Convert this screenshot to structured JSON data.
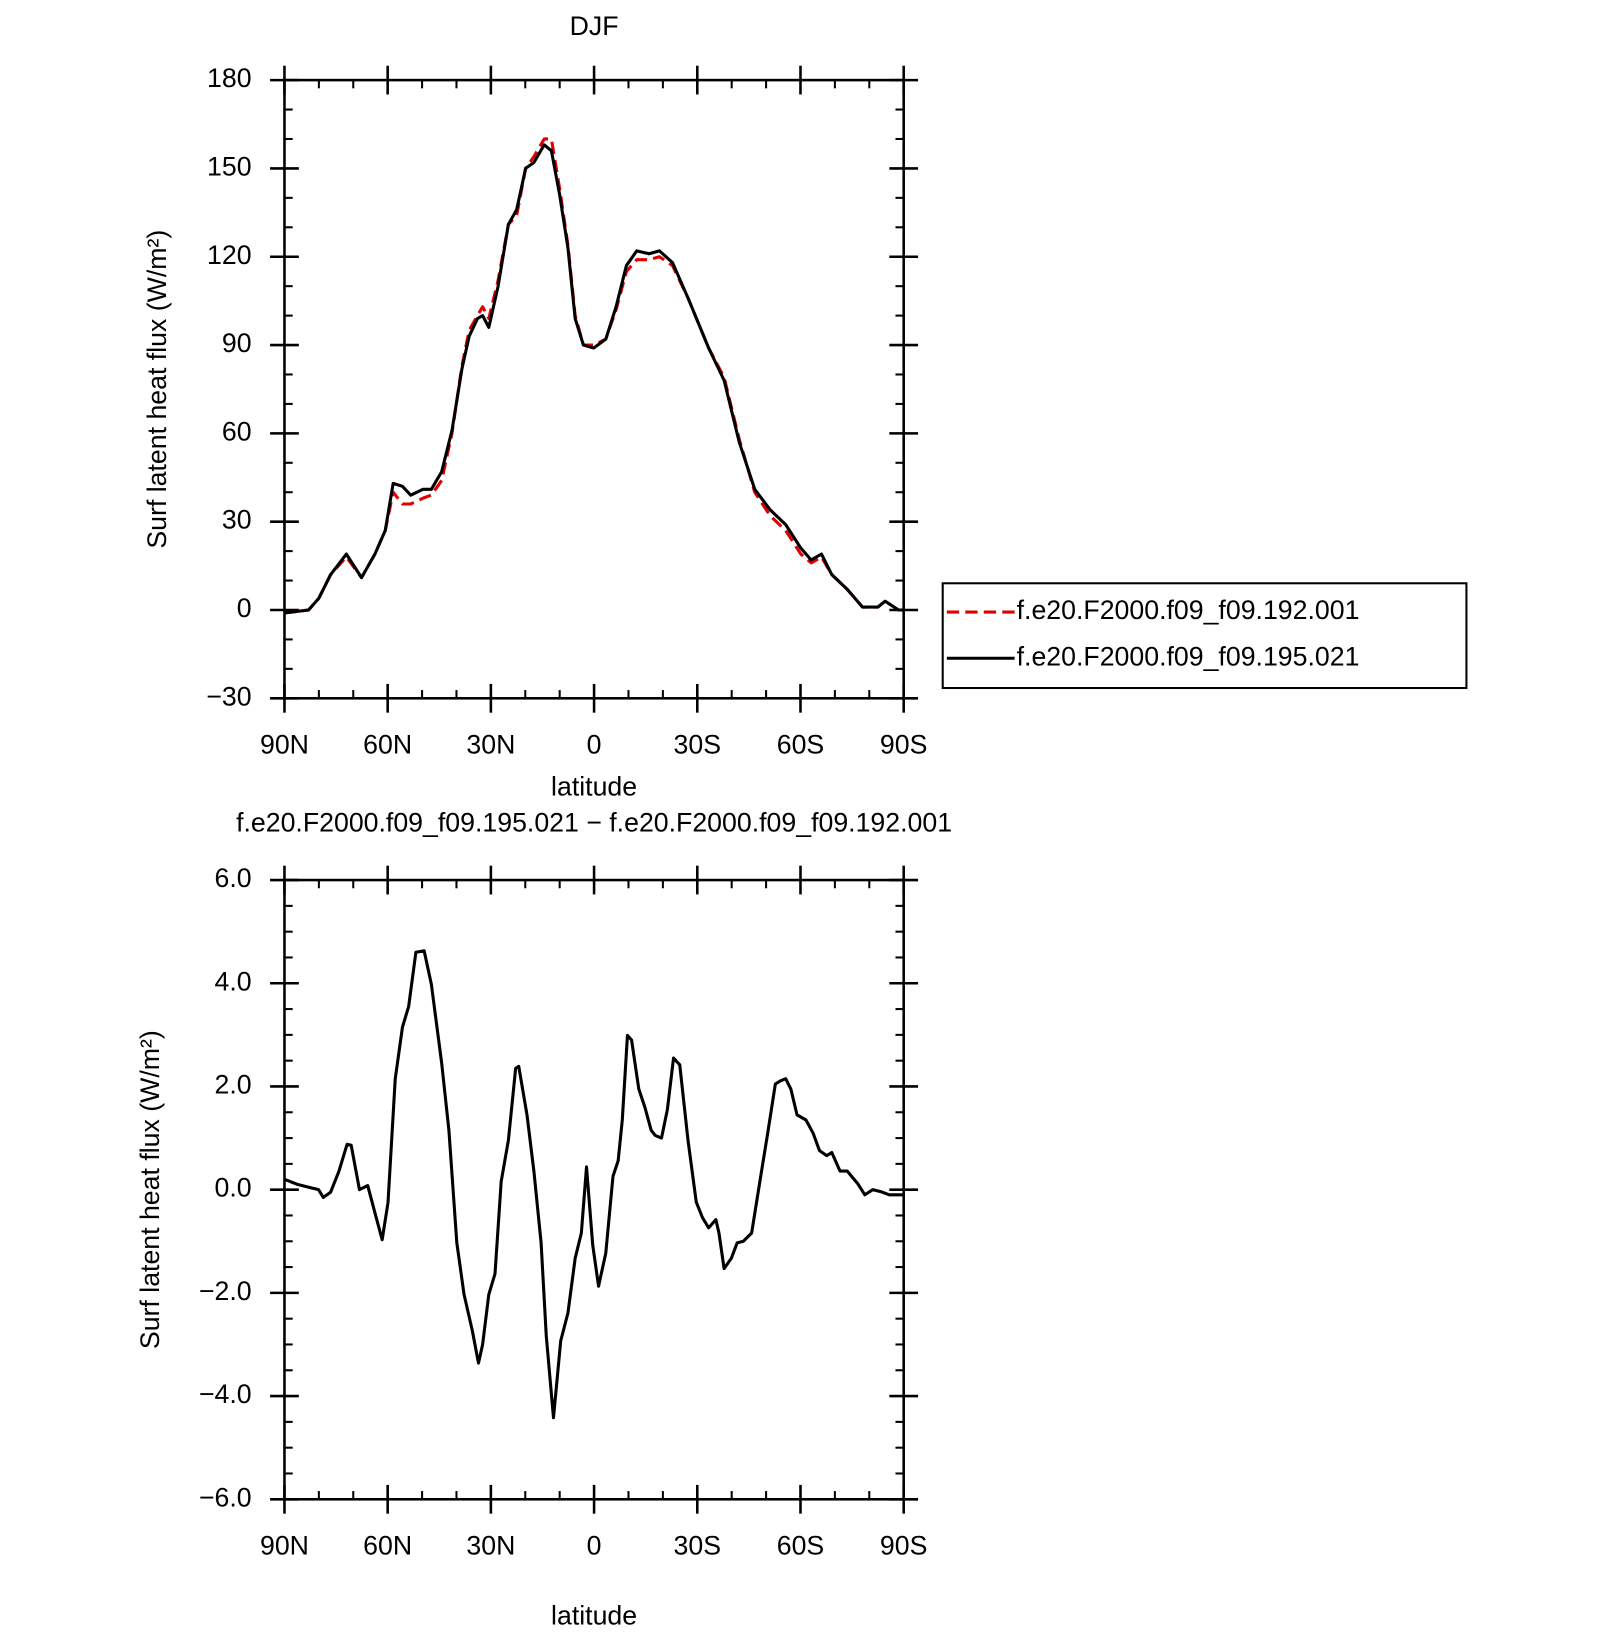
{
  "chart_data": [
    {
      "type": "line",
      "title": "DJF",
      "xlabel": "latitude",
      "ylabel": "Surf latent heat flux (W/m²)",
      "x": [
        90,
        83,
        80,
        76.6,
        72,
        67.6,
        63.7,
        60.7,
        58.4,
        55.7,
        53.3,
        49.7,
        47.3,
        44.3,
        41.3,
        38.4,
        36.3,
        33.9,
        32.4,
        30.6,
        27.9,
        24.9,
        22.5,
        19.9,
        17.5,
        14.5,
        12.4,
        10,
        7.6,
        5.5,
        3.1,
        0.1,
        -3.4,
        -6.4,
        -9.4,
        -12.4,
        -16,
        -19,
        -22.8,
        -27.3,
        -33.3,
        -37.8,
        -42.2,
        -46.7,
        -51.2,
        -55.7,
        -60.1,
        -63.1,
        -66.1,
        -69.1,
        -73.6,
        -78,
        -82.5,
        -84.6,
        -88.5,
        -90
      ],
      "series": [
        {
          "name": "f.e20.F2000.f09_f09.192.001",
          "color": "#e00000",
          "linestyle": "dashed",
          "values": [
            -1,
            0,
            4,
            12,
            18,
            11,
            19,
            27,
            40,
            36,
            36,
            38,
            39,
            44,
            60,
            83,
            95,
            100,
            103,
            99,
            112,
            131,
            134,
            150,
            154,
            160,
            160,
            143,
            124,
            100,
            90,
            90,
            92,
            102,
            115,
            119,
            119,
            120,
            117,
            106,
            89,
            79,
            58,
            40,
            32,
            27,
            19,
            16,
            18,
            12,
            7,
            1,
            1,
            3,
            0,
            0
          ]
        },
        {
          "name": "f.e20.F2000.f09_f09.195.021",
          "color": "#000000",
          "linestyle": "solid",
          "values": [
            -1,
            0,
            4,
            12,
            19,
            11,
            19,
            27,
            43,
            42,
            39,
            41,
            41,
            47,
            61,
            82,
            93,
            99,
            100,
            96,
            110,
            131,
            136,
            150,
            152,
            158,
            156,
            141,
            123,
            99,
            90,
            89,
            92,
            103,
            117,
            122,
            121,
            122,
            118,
            106,
            89,
            78,
            57,
            41,
            34,
            29,
            21,
            17,
            19,
            12,
            7,
            1,
            1,
            3,
            0,
            0
          ]
        }
      ],
      "xlim": [
        90,
        -90
      ],
      "xticks": [
        {
          "value": 90,
          "label": "90N"
        },
        {
          "value": 60,
          "label": "60N"
        },
        {
          "value": 30,
          "label": "30N"
        },
        0,
        {
          "value": -30,
          "label": "30S"
        },
        {
          "value": -60,
          "label": "60S"
        },
        {
          "value": -90,
          "label": "90S"
        }
      ],
      "ylim": [
        -30,
        180
      ],
      "yticks": [
        {
          "value": -30,
          "label": "−30"
        },
        0,
        30,
        60,
        90,
        120,
        150,
        180
      ],
      "legend": "right"
    },
    {
      "type": "line",
      "title": "f.e20.F2000.f09_f09.195.021 − f.e20.F2000.f09_f09.192.001",
      "xlabel": "latitude",
      "ylabel": "Surf latent heat flux (W/m²)",
      "x": [
        90,
        86.1,
        83.1,
        80.1,
        78.7,
        76.6,
        74.2,
        71.8,
        70.6,
        68.2,
        65.8,
        63.7,
        61.6,
        59.9,
        57.8,
        55.7,
        53.9,
        51.8,
        49.4,
        47.3,
        44.3,
        42.2,
        39.9,
        37.8,
        35.4,
        33.6,
        32.4,
        30.6,
        28.8,
        27,
        24.9,
        22.8,
        21.9,
        19.5,
        17.5,
        15.4,
        13.9,
        11.8,
        9.7,
        7.6,
        5.5,
        3.7,
        2.2,
        0.4,
        -1.3,
        -3.4,
        -5.5,
        -7,
        -8.2,
        -9.7,
        -10.9,
        -13,
        -14.8,
        -16.6,
        -17.8,
        -19.6,
        -21.3,
        -23.1,
        -24.9,
        -27.3,
        -29.7,
        -31.5,
        -33.3,
        -35.4,
        -36.3,
        -37.8,
        -39.9,
        -41.6,
        -43.4,
        -45.8,
        -48.2,
        -50.6,
        -52.7,
        -54.2,
        -55.7,
        -57.2,
        -59,
        -61.6,
        -63.7,
        -65.5,
        -67.6,
        -69.1,
        -71.5,
        -73.6,
        -76.6,
        -78.7,
        -81,
        -83.4,
        -85.8,
        -90
      ],
      "series": [
        {
          "color": "#000000",
          "linestyle": "solid",
          "values": [
            0.2,
            0.1,
            0.05,
            0,
            -0.15,
            -0.05,
            0.35,
            0.88,
            0.86,
            0,
            0.08,
            -0.45,
            -0.97,
            -0.25,
            2.15,
            3.15,
            3.55,
            4.6,
            4.63,
            3.98,
            2.45,
            1.15,
            -1.03,
            -2.03,
            -2.73,
            -3.36,
            -3.0,
            -2.03,
            -1.63,
            0.16,
            0.96,
            2.35,
            2.39,
            1.45,
            0.36,
            -1.03,
            -2.83,
            -4.42,
            -2.93,
            -2.39,
            -1.33,
            -0.84,
            0.44,
            -1.07,
            -1.87,
            -1.23,
            0.26,
            0.56,
            1.35,
            2.99,
            2.9,
            1.95,
            1.59,
            1.15,
            1.05,
            1.0,
            1.55,
            2.55,
            2.42,
            0.96,
            -0.24,
            -0.54,
            -0.74,
            -0.58,
            -0.84,
            -1.53,
            -1.33,
            -1.03,
            -1.0,
            -0.84,
            0.16,
            1.15,
            2.05,
            2.11,
            2.15,
            1.95,
            1.45,
            1.35,
            1.09,
            0.76,
            0.66,
            0.72,
            0.36,
            0.36,
            0.12,
            -0.1,
            0,
            -0.04,
            -0.1,
            -0.1
          ]
        }
      ],
      "xlim": [
        90,
        -90
      ],
      "xticks": [
        {
          "value": 90,
          "label": "90N"
        },
        {
          "value": 60,
          "label": "60N"
        },
        {
          "value": 30,
          "label": "30N"
        },
        0,
        {
          "value": -30,
          "label": "30S"
        },
        {
          "value": -60,
          "label": "60S"
        },
        {
          "value": -90,
          "label": "90S"
        }
      ],
      "ylim": [
        -6,
        6
      ],
      "yticks": [
        {
          "value": -6,
          "label": "−6.0"
        },
        {
          "value": -4,
          "label": "−4.0"
        },
        {
          "value": -2,
          "label": "−2.0"
        },
        {
          "value": 0,
          "label": "0.0"
        },
        {
          "value": 2,
          "label": "2.0"
        },
        {
          "value": 4,
          "label": "4.0"
        },
        {
          "value": 6,
          "label": "6.0"
        }
      ]
    }
  ]
}
